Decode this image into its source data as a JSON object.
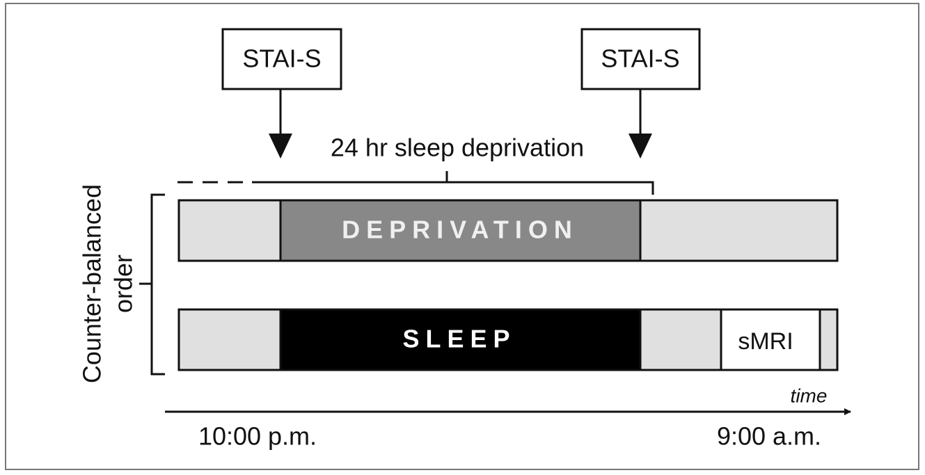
{
  "stai_labels": [
    "STAI-S",
    "STAI-S"
  ],
  "deprivation_span_label": "24 hr sleep deprivation",
  "conditions": {
    "deprivation": "DEPRIVATION",
    "sleep": "SLEEP",
    "scan": "sMRI"
  },
  "order_label": [
    "Counter-balanced",
    "order"
  ],
  "time_axis": {
    "label": "time",
    "start": "10:00 p.m.",
    "end": "9:00 a.m."
  }
}
